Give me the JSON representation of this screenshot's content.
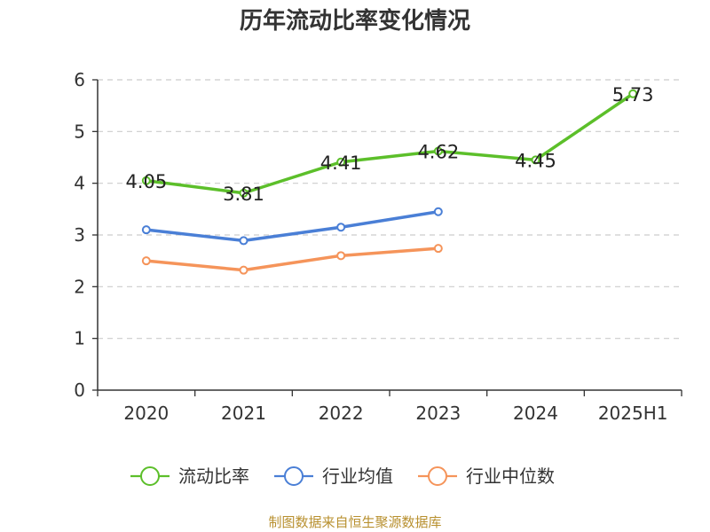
{
  "chart_data": {
    "type": "line",
    "title": "历年流动比率变化情况",
    "categories": [
      "2020",
      "2021",
      "2022",
      "2023",
      "2024",
      "2025H1"
    ],
    "ylim": [
      0,
      6
    ],
    "yticks": [
      "0",
      "1",
      "2",
      "3",
      "4",
      "5",
      "6"
    ],
    "grid": true,
    "legend_position": "bottom",
    "series": [
      {
        "name": "流动比率",
        "color": "#5cbf2a",
        "values": [
          4.05,
          3.81,
          4.41,
          4.62,
          4.45,
          5.73
        ],
        "labels": [
          "4.05",
          "3.81",
          "4.41",
          "4.62",
          "4.45",
          "5.73"
        ],
        "show_labels": true
      },
      {
        "name": "行业均值",
        "color": "#4a7fd6",
        "values": [
          3.1,
          2.89,
          3.15,
          3.45,
          null,
          null
        ],
        "show_labels": false
      },
      {
        "name": "行业中位数",
        "color": "#f5945a",
        "values": [
          2.5,
          2.32,
          2.6,
          2.74,
          null,
          null
        ],
        "show_labels": false
      }
    ]
  },
  "source": "制图数据来自恒生聚源数据库"
}
